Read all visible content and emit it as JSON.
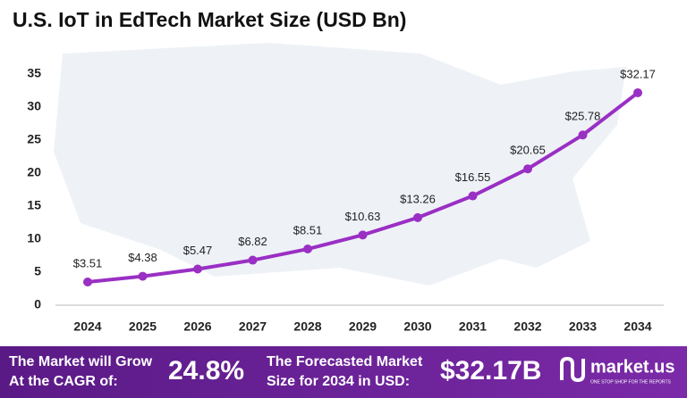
{
  "chart_data": {
    "type": "line",
    "title": "U.S. IoT in EdTech Market Size (USD Bn)",
    "categories": [
      "2024",
      "2025",
      "2026",
      "2027",
      "2028",
      "2029",
      "2030",
      "2031",
      "2032",
      "2033",
      "2034"
    ],
    "series": [
      {
        "color": "#9a2fc4",
        "values": [
          3.51,
          4.38,
          5.47,
          6.82,
          8.51,
          10.63,
          13.26,
          16.55,
          20.65,
          25.78,
          32.17
        ],
        "value_labels": [
          "$3.51",
          "$4.38",
          "$5.47",
          "$6.82",
          "$8.51",
          "$10.63",
          "$13.26",
          "$16.55",
          "$20.65",
          "$25.78",
          "$32.17"
        ]
      }
    ],
    "ylim": [
      0,
      35
    ],
    "yticks": [
      0,
      5,
      10,
      15,
      20,
      25,
      30,
      35
    ],
    "grid": false
  },
  "footer": {
    "cagr_text": [
      "The Market will Grow",
      "At the CAGR of:"
    ],
    "cagr": "24.8%",
    "forecast_text": [
      "The Forecasted Market",
      "Size for 2034 in USD:"
    ],
    "forecast": "$32.17B",
    "brand": "market.us",
    "tagline": "ONE STOP SHOP FOR THE REPORTS"
  }
}
